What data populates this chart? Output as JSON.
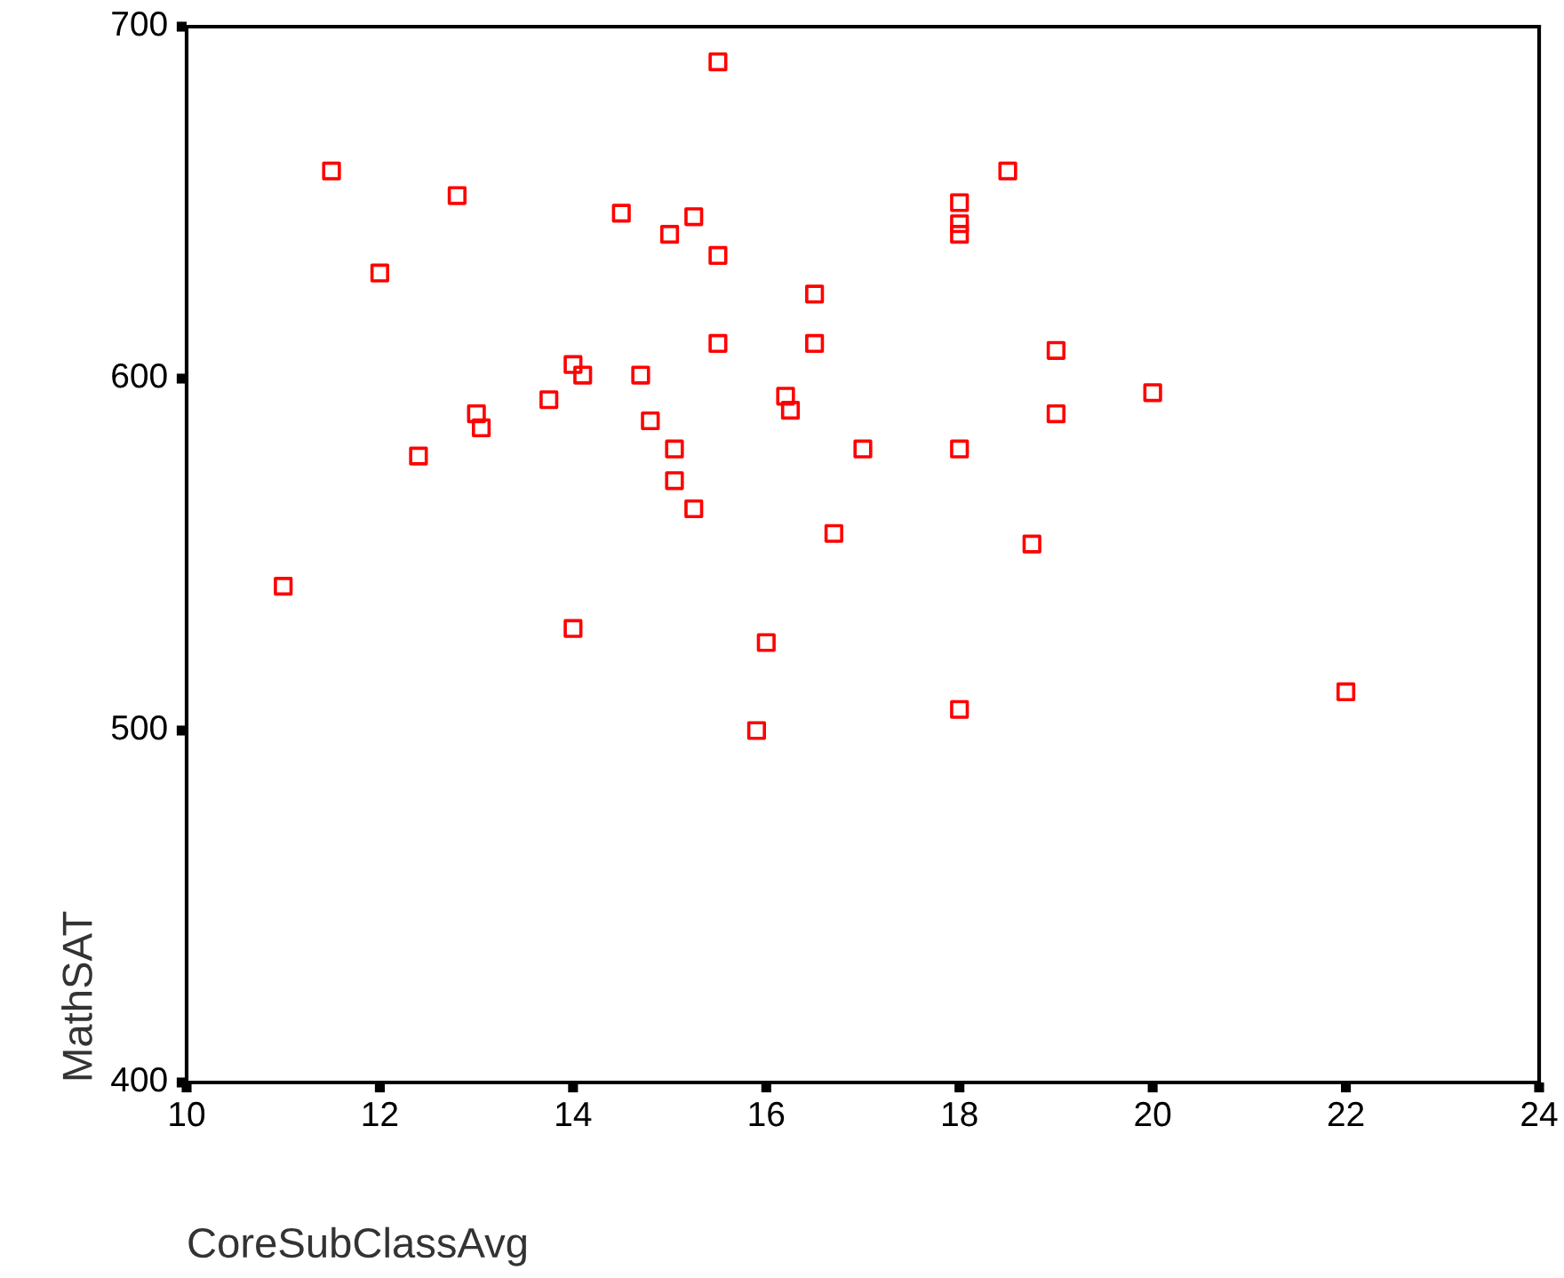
{
  "chart_data": {
    "type": "scatter",
    "xlabel": "CoreSubClassAvg",
    "ylabel": "MathSAT",
    "x": [
      11.5,
      12.0,
      12.8,
      12.4,
      13.0,
      13.05,
      13.75,
      14.0,
      14.1,
      14.5,
      14.7,
      14.8,
      15.0,
      15.25,
      15.5,
      15.5,
      15.5,
      15.05,
      15.05,
      15.25,
      16.5,
      16.5,
      16.2,
      16.25,
      17.0,
      16.7,
      14.0,
      16.0,
      15.9,
      11.0,
      18.0,
      18.0,
      18.0,
      18.5,
      18.0,
      18.0,
      18.75,
      19.0,
      19.0,
      20.0,
      22.0
    ],
    "values": [
      659,
      630,
      652,
      578,
      590,
      586,
      594,
      604,
      601,
      647,
      601,
      588,
      641,
      646,
      635,
      610,
      690,
      580,
      571,
      563,
      624,
      610,
      595,
      591,
      580,
      556,
      529,
      525,
      500,
      541,
      650,
      644,
      641,
      659,
      580,
      506,
      553,
      608,
      590,
      596,
      511
    ],
    "color": "#ff0000",
    "marker": "square",
    "xlim": [
      10,
      24
    ],
    "xticks": [
      10,
      12,
      14,
      16,
      18,
      20,
      22,
      24
    ],
    "ylim": [
      400,
      700
    ],
    "yticks": [
      400,
      500,
      600,
      700
    ],
    "grid": false
  }
}
